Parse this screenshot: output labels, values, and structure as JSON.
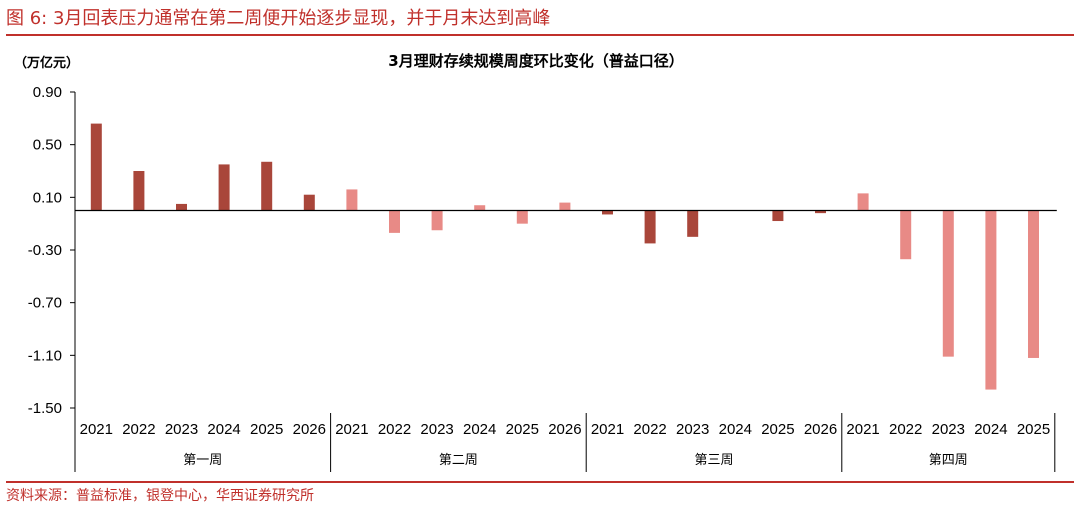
{
  "figure": {
    "title": "图 6:  3月回表压力通常在第二周便开始逐步显现，并于月末达到高峰",
    "source": "资料来源：普益标准，银登中心，华西证券研究所"
  },
  "chart_data": {
    "type": "bar",
    "title": "3月理财存续规模周度环比变化（普益口径）",
    "unit": "（万亿元）",
    "ylim": [
      -1.5,
      0.9
    ],
    "yticks": [
      0.9,
      0.5,
      0.1,
      -0.3,
      -0.7,
      -1.1,
      -1.5
    ],
    "grid": false,
    "colors": {
      "dark": "#a9463a",
      "light": "#e88a86"
    },
    "groups": [
      {
        "name": "第一周",
        "color": "dark",
        "categories": [
          "2021",
          "2022",
          "2023",
          "2024",
          "2025",
          "2026"
        ],
        "values": [
          0.66,
          0.3,
          0.05,
          0.35,
          0.37,
          0.12
        ]
      },
      {
        "name": "第二周",
        "color": "light",
        "categories": [
          "2021",
          "2022",
          "2023",
          "2024",
          "2025",
          "2026"
        ],
        "values": [
          0.16,
          -0.17,
          -0.15,
          0.04,
          -0.1,
          0.06
        ]
      },
      {
        "name": "第三周",
        "color": "dark",
        "categories": [
          "2021",
          "2022",
          "2023",
          "2024",
          "2025",
          "2026"
        ],
        "values": [
          -0.03,
          -0.25,
          -0.2,
          0.0,
          -0.08,
          -0.02
        ]
      },
      {
        "name": "第四周",
        "color": "light",
        "categories": [
          "2021",
          "2022",
          "2023",
          "2024",
          "2025"
        ],
        "values": [
          0.13,
          -0.37,
          -1.11,
          -1.36,
          -1.12
        ]
      }
    ]
  }
}
